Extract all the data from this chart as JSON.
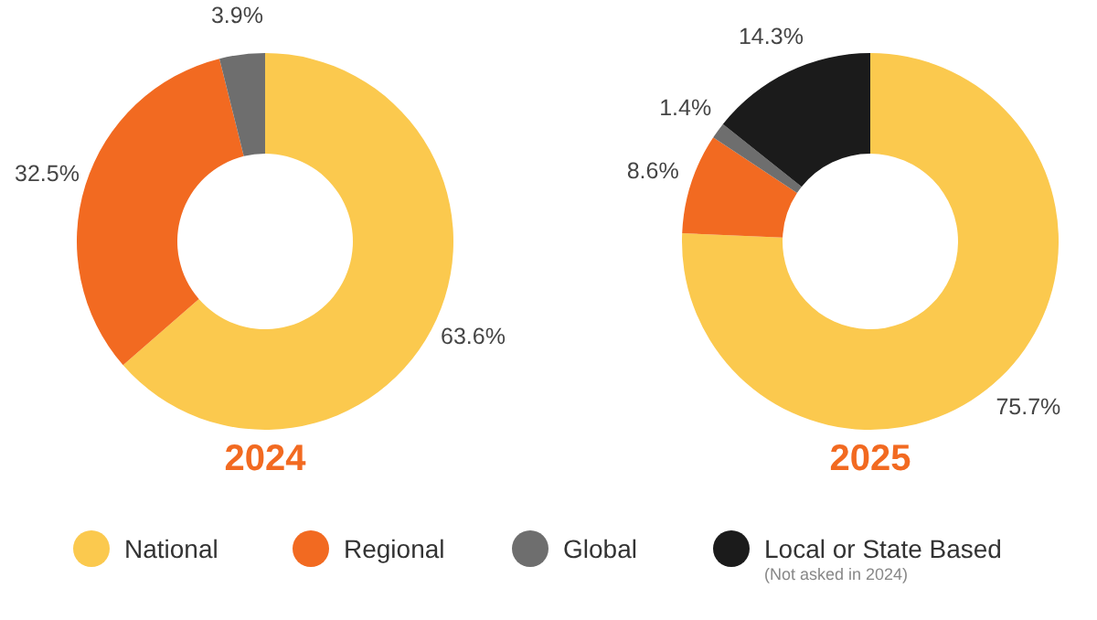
{
  "chart_data": [
    {
      "type": "donut",
      "title": "2024",
      "categories": [
        "National",
        "Regional",
        "Global"
      ],
      "values": [
        63.6,
        32.5,
        3.9
      ],
      "colors": [
        "#fbc94e",
        "#f26a21",
        "#6e6e6e"
      ],
      "value_labels": [
        "63.6%",
        "32.5%",
        "3.9%"
      ],
      "legend": "bottom"
    },
    {
      "type": "donut",
      "title": "2025",
      "categories": [
        null,
        null,
        null,
        "Local or State Based"
      ],
      "values": [
        75.7,
        8.6,
        1.4,
        14.3
      ],
      "colors": [
        "#fbc94e",
        "#f26a21",
        "#6e6e6e",
        "#1b1b1b"
      ],
      "value_labels": [
        "75.7%",
        "8.6%",
        "1.4%",
        "14.3%"
      ],
      "legend": "bottom",
      "annotations": [
        "(Not asked in 2024)"
      ]
    }
  ]
}
